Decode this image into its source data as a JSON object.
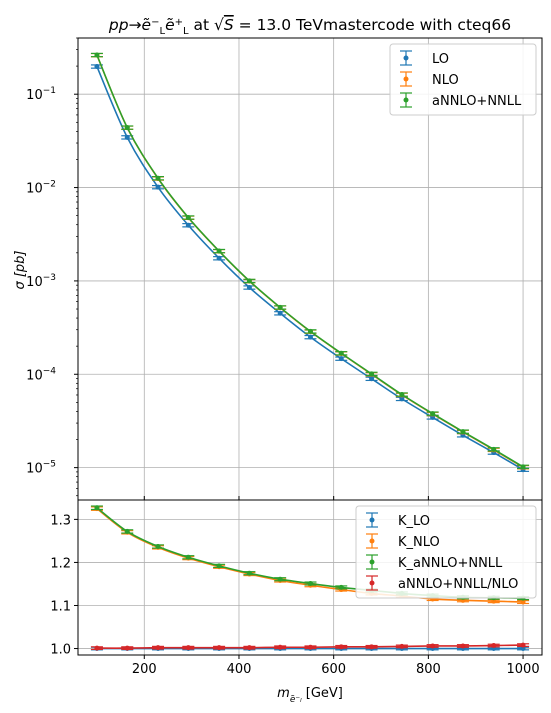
{
  "title": "pp→ẽ⁻ₗẽ⁺ₗ at √S = 13.0 TeVmastercode with cteq66",
  "colors": {
    "LO": "#1f77b4",
    "NLO": "#ff7f0e",
    "aNNLO": "#2ca02c",
    "ratio": "#d62728"
  },
  "chart_data": [
    {
      "type": "line",
      "ylabel": "σ [pb]",
      "yscale": "log",
      "xlim": [
        60,
        1040
      ],
      "ylim": [
        4.5e-06,
        0.4
      ],
      "yticks": [
        1e-05,
        0.0001,
        0.001,
        0.01,
        0.1
      ],
      "ytick_labels": [
        {
          "m": "10",
          "e": "−5"
        },
        {
          "m": "10",
          "e": "−4"
        },
        {
          "m": "10",
          "e": "−3"
        },
        {
          "m": "10",
          "e": "−2"
        },
        {
          "m": "10",
          "e": "−1"
        }
      ],
      "grid": true,
      "legend": "top-right",
      "x": [
        100,
        164,
        229,
        293,
        358,
        422,
        487,
        551,
        616,
        680,
        744,
        809,
        873,
        938,
        1000
      ],
      "series": [
        {
          "name": "LO",
          "values": [
            0.198,
            0.0345,
            0.0101,
            0.00395,
            0.00175,
            0.00085,
            0.00045,
            0.00025,
            0.000147,
            8.95e-05,
            5.45e-05,
            3.45e-05,
            2.22e-05,
            1.45e-05,
            9.5e-06
          ]
        },
        {
          "name": "NLO",
          "values": [
            0.262,
            0.0438,
            0.0125,
            0.00475,
            0.00208,
            0.000995,
            0.000518,
            0.000286,
            0.000167,
            0.0001,
            6.02e-05,
            3.76e-05,
            2.41e-05,
            1.55e-05,
            1.01e-05
          ]
        },
        {
          "name": "aNNLO+NNLL",
          "values": [
            0.263,
            0.0439,
            0.0126,
            0.00478,
            0.00209,
            0.001,
            0.00052,
            0.000288,
            0.000168,
            0.000101,
            6.07e-05,
            3.79e-05,
            2.43e-05,
            1.57e-05,
            1.02e-05
          ]
        }
      ]
    },
    {
      "type": "line",
      "xlabel": "m_ẽ⁻ₗ [GeV]",
      "xlabel_main": "m",
      "xlabel_sub": "ẽ⁻ₗ",
      "xlabel_unit": " [GeV]",
      "xlim": [
        60,
        1040
      ],
      "ylim": [
        0.985,
        1.345
      ],
      "xticks": [
        200,
        400,
        600,
        800,
        1000
      ],
      "yticks": [
        1.0,
        1.1,
        1.2,
        1.3
      ],
      "ytick_labels": [
        "1.0",
        "1.1",
        "1.2",
        "1.3"
      ],
      "grid": true,
      "legend": "top-right",
      "x": [
        100,
        164,
        229,
        293,
        358,
        422,
        487,
        551,
        616,
        680,
        744,
        809,
        873,
        938,
        1000
      ],
      "series": [
        {
          "name": "K_LO",
          "values": [
            1.0,
            1.0,
            1.0,
            1.0,
            1.0,
            1.0,
            1.0,
            1.0,
            1.0,
            1.0,
            1.0,
            1.0,
            1.0,
            1.0,
            1.0
          ]
        },
        {
          "name": "K_NLO",
          "values": [
            1.325,
            1.27,
            1.235,
            1.21,
            1.19,
            1.173,
            1.158,
            1.147,
            1.137,
            1.128,
            1.122,
            1.115,
            1.112,
            1.11,
            1.108
          ]
        },
        {
          "name": "K_aNNLO+NNLL",
          "values": [
            1.327,
            1.272,
            1.237,
            1.212,
            1.192,
            1.175,
            1.161,
            1.151,
            1.142,
            1.135,
            1.128,
            1.123,
            1.119,
            1.118,
            1.117
          ]
        },
        {
          "name": "aNNLO+NNLL/NLO",
          "values": [
            1.001,
            1.001,
            1.002,
            1.002,
            1.002,
            1.002,
            1.003,
            1.003,
            1.004,
            1.004,
            1.005,
            1.006,
            1.006,
            1.007,
            1.008
          ]
        }
      ]
    }
  ]
}
